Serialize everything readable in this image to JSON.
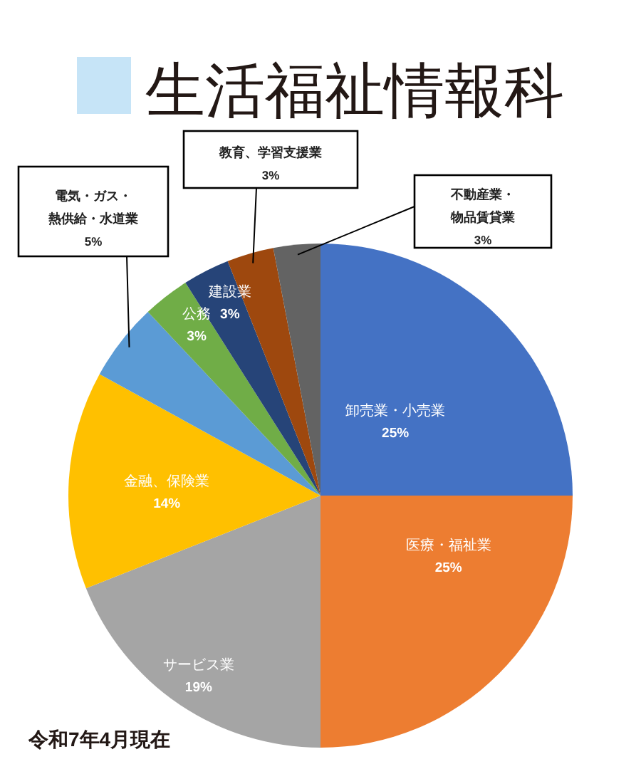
{
  "chart_data": {
    "type": "pie",
    "title": "生活福祉情報科",
    "categories": [
      "卸売業・小売業",
      "医療・福祉業",
      "サービス業",
      "金融、保険業",
      "電気・ガス・熱供給・水道業",
      "公務",
      "建設業",
      "教育、学習支援業",
      "不動産業・物品賃貸業"
    ],
    "values": [
      25,
      25,
      19,
      14,
      5,
      3,
      3,
      3,
      3
    ],
    "colors": [
      "#4472c4",
      "#ed7d31",
      "#a5a5a5",
      "#ffc000",
      "#5b9bd5",
      "#70ad47",
      "#264478",
      "#9e480e",
      "#636363"
    ],
    "value_labels": [
      "25%",
      "25%",
      "19%",
      "14%",
      "5%",
      "3%",
      "3%",
      "3%",
      "3%"
    ],
    "annotations": [
      "令和7年4月現在"
    ]
  }
}
